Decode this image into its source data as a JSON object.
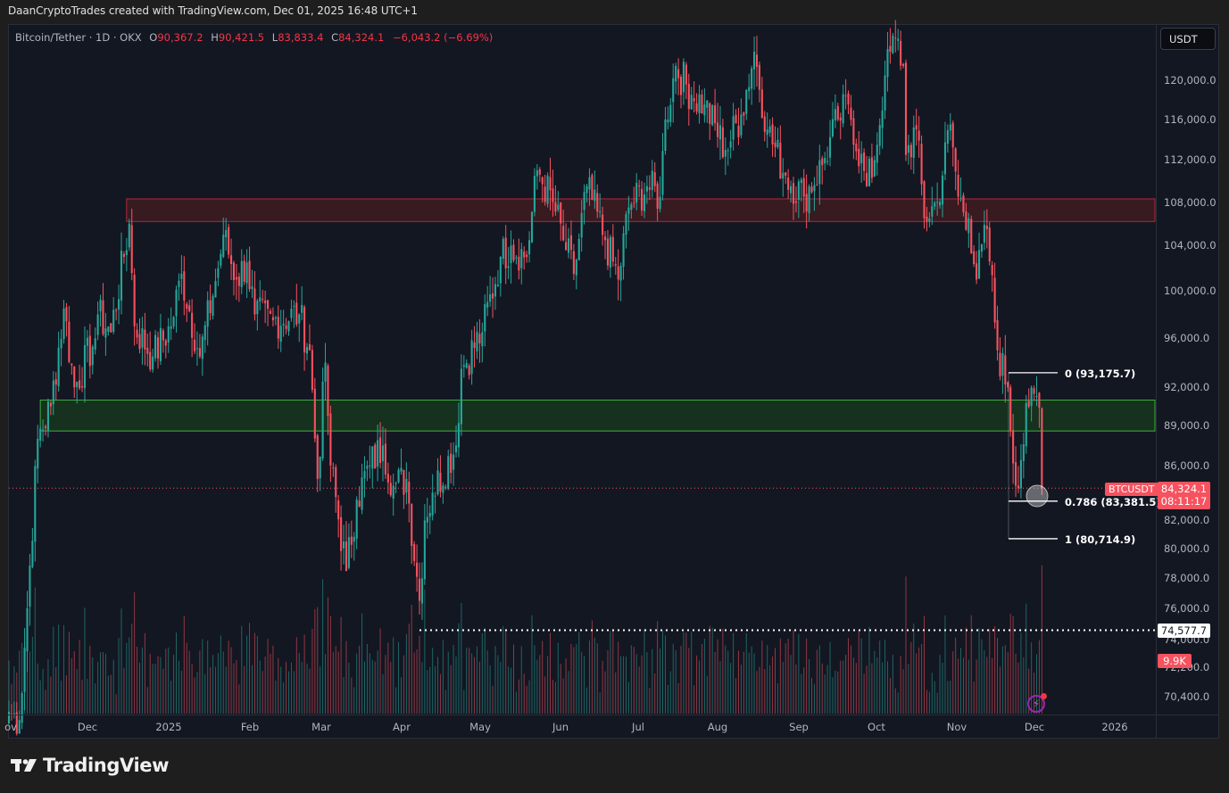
{
  "credit": "DaanCryptoTrades created with TradingView.com, Dec 01, 2025 16:48 UTC+1",
  "legend": {
    "symbol": "Bitcoin/Tether · 1D · OKX",
    "open_label": "O",
    "open": "90,367.2",
    "high_label": "H",
    "high": "90,421.5",
    "low_label": "L",
    "low": "83,833.4",
    "close_label": "C",
    "close": "84,324.1",
    "change": "−6,043.2 (−6.69%)"
  },
  "currency_button": "USDT",
  "price_axis": [
    "120,000.0",
    "116,000.0",
    "112,000.0",
    "108,000.0",
    "104,000.0",
    "100,000.0",
    "96,000.0",
    "92,000.0",
    "89,000.0",
    "86,000.0",
    "82,000.0",
    "80,000.0",
    "78,000.0",
    "76,000.0",
    "74,000.0",
    "72,200.0",
    "70,400.0"
  ],
  "time_axis": [
    "ov",
    "Dec",
    "2025",
    "Feb",
    "Mar",
    "Apr",
    "May",
    "Jun",
    "Jul",
    "Aug",
    "Sep",
    "Oct",
    "Nov",
    "Dec",
    "2026"
  ],
  "labels": {
    "symbol_tag": "BTCUSDT",
    "last_price": "84,324.1",
    "countdown": "08:11:17",
    "horizontal_line_price": "74,577.7",
    "volume": "9.9K"
  },
  "fib": {
    "level_0": "0 (93,175.7)",
    "level_0786": "0.786 (83,381.5)",
    "level_1": "1 (80,714.9)"
  },
  "footer": {
    "brand": "TradingView"
  },
  "colors": {
    "up": "#26a69a",
    "down": "#f7525f",
    "background": "#131722",
    "resistance_zone": "#3a1a22",
    "support_zone": "#16331f",
    "resistance_border": "#b2283a",
    "support_border": "#3fae3f"
  },
  "chart_data": {
    "type": "candlestick",
    "title": "Bitcoin/Tether · 1D · OKX",
    "xlabel": "",
    "ylabel": "USDT",
    "y_scale": "log",
    "ylim": [
      69500,
      124500
    ],
    "x_range": [
      "2024-11-01",
      "2025-12-31"
    ],
    "x_ticks": [
      "Nov",
      "Dec",
      "2025",
      "Feb",
      "Mar",
      "Apr",
      "May",
      "Jun",
      "Jul",
      "Aug",
      "Sep",
      "Oct",
      "Nov",
      "Dec",
      "2026"
    ],
    "y_ticks": [
      120000,
      116000,
      112000,
      108000,
      104000,
      100000,
      96000,
      92000,
      89000,
      86000,
      82000,
      80000,
      78000,
      76000,
      74000,
      72200,
      70400
    ],
    "close_path_keypoints": [
      [
        "2024-11-01",
        69500
      ],
      [
        "2024-11-05",
        69000
      ],
      [
        "2024-11-08",
        76000
      ],
      [
        "2024-11-12",
        88000
      ],
      [
        "2024-11-17",
        90500
      ],
      [
        "2024-11-22",
        98500
      ],
      [
        "2024-11-26",
        92000
      ],
      [
        "2024-12-04",
        96000
      ],
      [
        "2024-12-05",
        98000
      ],
      [
        "2024-12-10",
        96500
      ],
      [
        "2024-12-17",
        106000
      ],
      [
        "2024-12-19",
        97000
      ],
      [
        "2024-12-26",
        94500
      ],
      [
        "2025-01-02",
        97000
      ],
      [
        "2025-01-06",
        101500
      ],
      [
        "2025-01-13",
        94500
      ],
      [
        "2025-01-20",
        102000
      ],
      [
        "2025-01-22",
        105000
      ],
      [
        "2025-01-27",
        101000
      ],
      [
        "2025-01-31",
        102500
      ],
      [
        "2025-02-03",
        98000
      ],
      [
        "2025-02-10",
        97500
      ],
      [
        "2025-02-20",
        98000
      ],
      [
        "2025-02-24",
        95000
      ],
      [
        "2025-02-27",
        85000
      ],
      [
        "2025-03-02",
        94000
      ],
      [
        "2025-03-04",
        86000
      ],
      [
        "2025-03-10",
        78500
      ],
      [
        "2025-03-14",
        83500
      ],
      [
        "2025-03-19",
        86000
      ],
      [
        "2025-03-24",
        87500
      ],
      [
        "2025-03-28",
        84500
      ],
      [
        "2025-04-02",
        85000
      ],
      [
        "2025-04-07",
        76500
      ],
      [
        "2025-04-09",
        82000
      ],
      [
        "2025-04-12",
        84000
      ],
      [
        "2025-04-21",
        87500
      ],
      [
        "2025-04-23",
        93500
      ],
      [
        "2025-05-01",
        96500
      ],
      [
        "2025-05-08",
        103000
      ],
      [
        "2025-05-12",
        104000
      ],
      [
        "2025-05-18",
        103000
      ],
      [
        "2025-05-22",
        111000
      ],
      [
        "2025-05-28",
        108000
      ],
      [
        "2025-06-01",
        104500
      ],
      [
        "2025-06-05",
        101500
      ],
      [
        "2025-06-10",
        109500
      ],
      [
        "2025-06-17",
        104500
      ],
      [
        "2025-06-22",
        101000
      ],
      [
        "2025-06-26",
        107500
      ],
      [
        "2025-07-03",
        109500
      ],
      [
        "2025-07-08",
        108500
      ],
      [
        "2025-07-10",
        116000
      ],
      [
        "2025-07-14",
        121500
      ],
      [
        "2025-07-20",
        118500
      ],
      [
        "2025-07-25",
        117500
      ],
      [
        "2025-08-02",
        113000
      ],
      [
        "2025-08-08",
        116500
      ],
      [
        "2025-08-13",
        123000
      ],
      [
        "2025-08-18",
        115000
      ],
      [
        "2025-08-25",
        110500
      ],
      [
        "2025-09-01",
        108500
      ],
      [
        "2025-09-08",
        111500
      ],
      [
        "2025-09-14",
        116000
      ],
      [
        "2025-09-18",
        117500
      ],
      [
        "2025-09-25",
        109500
      ],
      [
        "2025-09-28",
        112000
      ],
      [
        "2025-10-02",
        120500
      ],
      [
        "2025-10-06",
        124500
      ],
      [
        "2025-10-09",
        121500
      ],
      [
        "2025-10-10",
        112500
      ],
      [
        "2025-10-14",
        115000
      ],
      [
        "2025-10-17",
        106500
      ],
      [
        "2025-10-22",
        108000
      ],
      [
        "2025-10-27",
        115500
      ],
      [
        "2025-10-30",
        108500
      ],
      [
        "2025-11-03",
        106500
      ],
      [
        "2025-11-06",
        101000
      ],
      [
        "2025-11-10",
        105500
      ],
      [
        "2025-11-14",
        95000
      ],
      [
        "2025-11-18",
        92000
      ],
      [
        "2025-11-21",
        84500
      ],
      [
        "2025-11-26",
        90500
      ],
      [
        "2025-11-28",
        91500
      ],
      [
        "2025-11-30",
        90400
      ],
      [
        "2025-12-01",
        84324.1
      ]
    ],
    "zones": [
      {
        "type": "resistance",
        "from": 106200,
        "to": 108300,
        "start": "2024-12-16",
        "end": "extend"
      },
      {
        "type": "support",
        "from": 88600,
        "to": 91000,
        "start": "2024-11-13",
        "end": "extend"
      }
    ],
    "horizontal_line": {
      "price": 74577.7,
      "start": "2025-04-07",
      "style": "dotted"
    },
    "fibonacci": [
      {
        "level": 0,
        "price": 93175.7
      },
      {
        "level": 0.786,
        "price": 83381.5
      },
      {
        "level": 1,
        "price": 80714.9
      }
    ],
    "last_price": 84324.1,
    "last_volume": "9.9K"
  }
}
